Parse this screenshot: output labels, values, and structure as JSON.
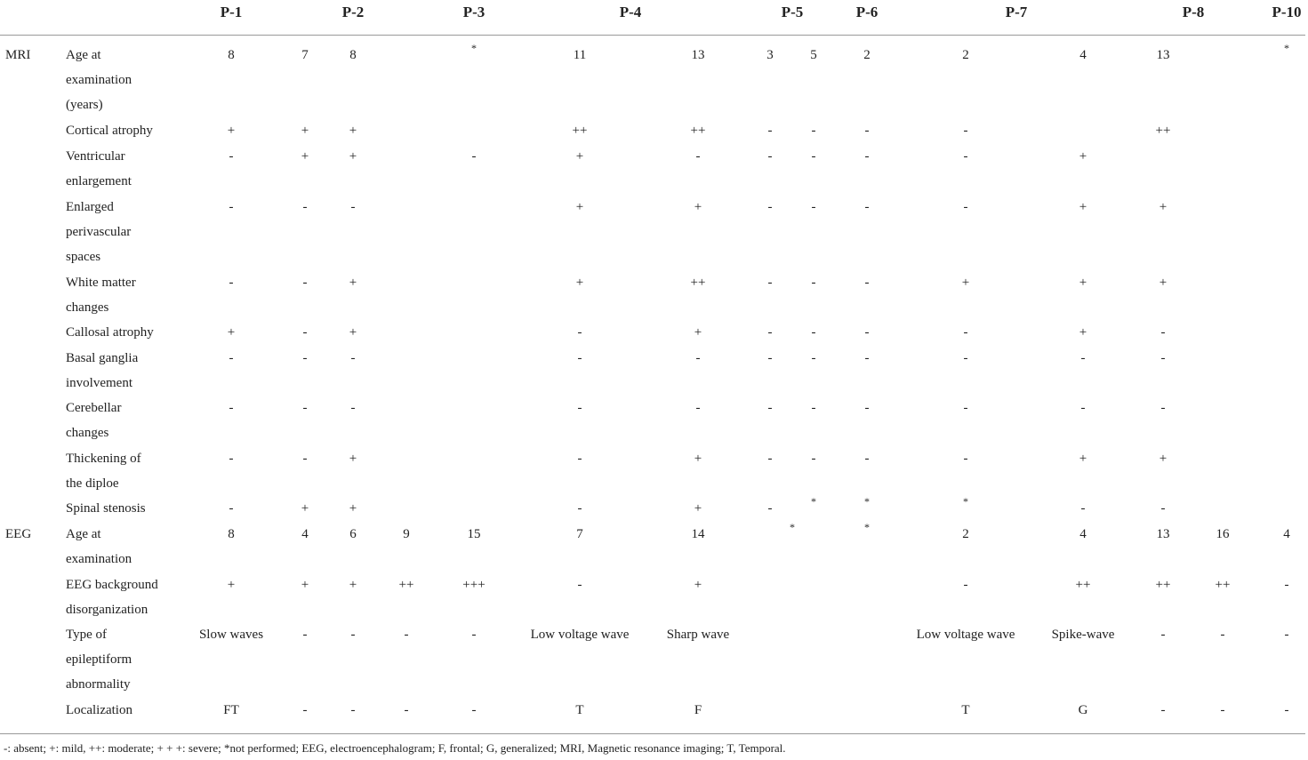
{
  "table": {
    "columns": [
      "P-1",
      "P-2",
      "P-3",
      "P-4",
      "P-5",
      "P-6",
      "P-7",
      "P-8",
      "P-10"
    ],
    "sections": [
      {
        "name": "MRI",
        "rows": [
          {
            "label": [
              "Age at",
              "examination",
              "(years)"
            ],
            "cells": [
              "8",
              "7",
              "8",
              "*",
              "11",
              "13",
              "3",
              "5",
              "2",
              "2",
              "4",
              "13",
              "*"
            ]
          },
          {
            "label": [
              "Cortical atrophy"
            ],
            "cells": [
              "+",
              "+",
              "+",
              "++",
              "++",
              "-",
              "-",
              "-",
              "-",
              "++"
            ]
          },
          {
            "label": [
              "Ventricular",
              "enlargement"
            ],
            "cells": [
              "-",
              "+",
              "+",
              "-",
              "+",
              "-",
              "-",
              "-",
              "-",
              "-",
              "+"
            ]
          },
          {
            "label": [
              "Enlarged",
              "perivascular",
              "spaces"
            ],
            "cells": [
              "-",
              "-",
              "-",
              "+",
              "+",
              "-",
              "-",
              "-",
              "-",
              "+",
              "+"
            ]
          },
          {
            "label": [
              "White matter",
              "changes"
            ],
            "cells": [
              "-",
              "-",
              "+",
              "+",
              "++",
              "-",
              "-",
              "-",
              "+",
              "+",
              "+"
            ]
          },
          {
            "label": [
              "Callosal atrophy"
            ],
            "cells": [
              "+",
              "-",
              "+",
              "-",
              "+",
              "-",
              "-",
              "-",
              "-",
              "+",
              "-"
            ]
          },
          {
            "label": [
              "Basal ganglia",
              "involvement"
            ],
            "cells": [
              "-",
              "-",
              "-",
              "-",
              "-",
              "-",
              "-",
              "-",
              "-",
              "-",
              "-"
            ]
          },
          {
            "label": [
              "Cerebellar",
              "changes"
            ],
            "cells": [
              "-",
              "-",
              "-",
              "-",
              "-",
              "-",
              "-",
              "-",
              "-",
              "-",
              "-"
            ]
          },
          {
            "label": [
              "Thickening of",
              "the diploe"
            ],
            "cells": [
              "-",
              "-",
              "+",
              "-",
              "+",
              "-",
              "-",
              "-",
              "-",
              "+",
              "+"
            ]
          },
          {
            "label": [
              "Spinal stenosis"
            ],
            "cells": [
              "-",
              "+",
              "+",
              "-",
              "+",
              "-",
              "*",
              "*",
              "*",
              "-",
              "-"
            ]
          }
        ]
      },
      {
        "name": "EEG",
        "rows": [
          {
            "label": [
              "Age at",
              "examination"
            ],
            "cells": [
              "8",
              "4",
              "6",
              "9",
              "15",
              "7",
              "14",
              "*",
              "*",
              "2",
              "4",
              "13",
              "16",
              "4"
            ]
          },
          {
            "label": [
              "EEG background",
              "disorganization"
            ],
            "cells": [
              "+",
              "+",
              "+",
              "++",
              "+++",
              "-",
              "+",
              "-",
              "++",
              "++",
              "++",
              "-"
            ]
          },
          {
            "label": [
              "Type of",
              "epileptiform",
              "abnormality"
            ],
            "cells": [
              "Slow waves",
              "-",
              "-",
              "-",
              "-",
              "Low voltage wave",
              "Sharp wave",
              "Low voltage wave",
              "Spike-wave",
              "-",
              "-",
              "-"
            ]
          },
          {
            "label": [
              "Localization"
            ],
            "cells": [
              "FT",
              "-",
              "-",
              "-",
              "-",
              "T",
              "F",
              "T",
              "G",
              "-",
              "-",
              "-"
            ]
          }
        ]
      }
    ],
    "footnote": "-: absent; +: mild, ++: moderate; + + +: severe; *not performed; EEG, electroencephalogram; F, frontal; G, generalized; MRI, Magnetic resonance imaging; T, Temporal."
  }
}
